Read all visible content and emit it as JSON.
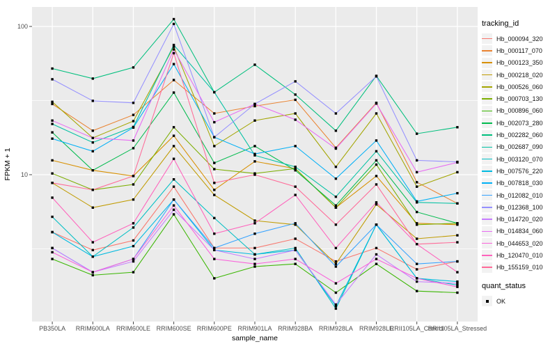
{
  "figure": {
    "ylabel": "FPKM + 1",
    "xlabel": "sample_name",
    "y_ticks": [
      "100",
      "10"
    ],
    "panel_bg": "#ebebeb",
    "grid_color": "#ffffff",
    "tick_text_color": "#4d4d4d",
    "point_color": "#000000"
  },
  "legend": {
    "tracking_title": "tracking_id",
    "quant_title": "quant_status",
    "quant_items": [
      {
        "label": "OK",
        "shape": "black-square"
      }
    ]
  },
  "chart_data": {
    "type": "line",
    "x_axis": "sample_name",
    "y_axis": "FPKM + 1",
    "y_scale": "log10",
    "ylim": [
      1,
      130
    ],
    "y_tick_values": [
      10,
      100
    ],
    "y_minor_values": [
      3.162,
      31.62
    ],
    "grid": true,
    "legend_position": "right",
    "marker": "black-square",
    "categories": [
      "PB350LA",
      "RRIM600LA",
      "RRIM600LE",
      "RRIM600SE",
      "RRIM600PE",
      "RRIM901LA",
      "RRIM928BA",
      "RRIM928LA",
      "RRIM928LE",
      "RRII105LA_Control",
      "RRII105LA_Stressed"
    ],
    "series": [
      {
        "name": "Hb_000094_320",
        "color": "#F8766D",
        "values": [
          4.1,
          3.1,
          3.6,
          8.3,
          3.2,
          3.2,
          3.7,
          2.6,
          3.2,
          2.3,
          2.6
        ]
      },
      {
        "name": "Hb_000117_070",
        "color": "#EA8331",
        "values": [
          30,
          19.8,
          25.3,
          43.5,
          25.9,
          29,
          32,
          15.2,
          30.5,
          8.9,
          6.4
        ]
      },
      {
        "name": "Hb_000123_350",
        "color": "#D89000",
        "values": [
          12.5,
          10.7,
          9.8,
          18.3,
          7.9,
          12.3,
          11,
          6,
          9.8,
          4.7,
          4.6
        ]
      },
      {
        "name": "Hb_000218_020",
        "color": "#C09B00",
        "values": [
          8.8,
          6,
          6.8,
          15.6,
          7.3,
          4.9,
          4.6,
          2.5,
          6.3,
          3.7,
          3.9
        ]
      },
      {
        "name": "Hb_000526_060",
        "color": "#A3A500",
        "values": [
          31,
          17.7,
          23,
          73,
          15.6,
          23.2,
          25.9,
          11.3,
          25.9,
          8.3,
          10.4
        ]
      },
      {
        "name": "Hb_000703_130",
        "color": "#7CAE00",
        "values": [
          10.2,
          7.9,
          8.6,
          20.9,
          10.9,
          10.2,
          11,
          6,
          11.7,
          4.6,
          4.7
        ]
      },
      {
        "name": "Hb_000896_060",
        "color": "#39B600",
        "values": [
          2.7,
          2.1,
          2.2,
          5.4,
          2,
          2.4,
          2.5,
          1.6,
          2.5,
          1.64,
          1.6
        ]
      },
      {
        "name": "Hb_002073_280",
        "color": "#00BB4E",
        "values": [
          19.3,
          10.7,
          15.1,
          35.8,
          12,
          15.6,
          10.7,
          6.2,
          12.5,
          5.6,
          4.7
        ]
      },
      {
        "name": "Hb_002282_060",
        "color": "#00BF7D",
        "values": [
          52,
          44.5,
          52.9,
          112,
          36,
          55.2,
          34.7,
          19.8,
          46.4,
          18.9,
          20.9
        ]
      },
      {
        "name": "Hb_002687_090",
        "color": "#00C1A3",
        "values": [
          22,
          16.5,
          21,
          75,
          36,
          13.5,
          11.3,
          7.1,
          14.4,
          6.5,
          6.4
        ]
      },
      {
        "name": "Hb_003120_070",
        "color": "#00BFC4",
        "values": [
          5.2,
          2.8,
          4.4,
          9.3,
          5.1,
          2.9,
          3.2,
          1.25,
          4.6,
          2,
          1.8
        ]
      },
      {
        "name": "Hb_007576_220",
        "color": "#00BAE0",
        "values": [
          4.1,
          2.8,
          3.3,
          6.8,
          3.1,
          2.9,
          3.1,
          1.3,
          4.6,
          2,
          1.9
        ]
      },
      {
        "name": "Hb_007818_030",
        "color": "#00B0F6",
        "values": [
          17.5,
          14.4,
          20.8,
          55.7,
          17.9,
          13.8,
          15.6,
          9.4,
          17,
          6.6,
          7.5
        ]
      },
      {
        "name": "Hb_012082_010",
        "color": "#35A2FF",
        "values": [
          3.2,
          2.2,
          2.7,
          6.8,
          3.2,
          4,
          4.7,
          2.4,
          4.6,
          2.5,
          2.6
        ]
      },
      {
        "name": "Hb_012368_100",
        "color": "#9590FF",
        "values": [
          44,
          31.5,
          30.5,
          104,
          17.9,
          30,
          42.6,
          25.9,
          46,
          12.5,
          12.2
        ]
      },
      {
        "name": "Hb_014720_020",
        "color": "#C77CFF",
        "values": [
          3.2,
          2.2,
          2.6,
          5.8,
          3.1,
          2.7,
          3.1,
          1.33,
          2.9,
          1.9,
          1.85
        ]
      },
      {
        "name": "Hb_014834_060",
        "color": "#E76BF3",
        "values": [
          23.2,
          17.7,
          17,
          70,
          22.6,
          30,
          23.5,
          15,
          30.2,
          10.4,
          12.1
        ]
      },
      {
        "name": "Hb_044653_020",
        "color": "#FA62DB",
        "values": [
          3,
          2.2,
          2.7,
          6.2,
          2.7,
          2.5,
          2.7,
          1.85,
          2.7,
          2,
          1.75
        ]
      },
      {
        "name": "Hb_120470_010",
        "color": "#FF62BC",
        "values": [
          7,
          3.5,
          4.7,
          12.8,
          4,
          4.7,
          7.3,
          3.2,
          6.5,
          3.4,
          2.2
        ]
      },
      {
        "name": "Hb_155159_010",
        "color": "#FF6A98",
        "values": [
          8.8,
          7.9,
          9.8,
          66,
          8.8,
          10,
          8.3,
          4.6,
          8.6,
          3.4,
          3.5
        ]
      }
    ]
  }
}
